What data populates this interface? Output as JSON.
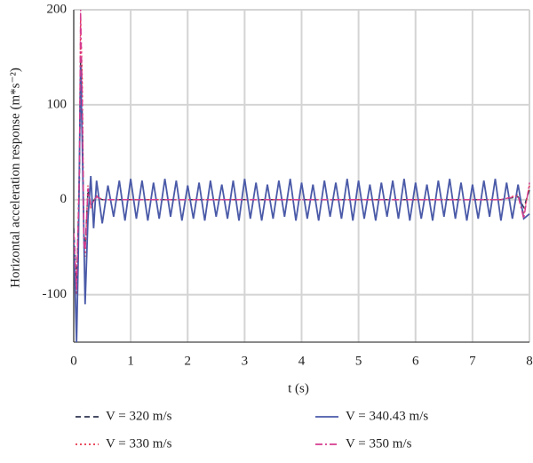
{
  "chart_data": {
    "type": "line",
    "xlabel": "t (s)",
    "ylabel": "Horizontal acceleration response (m*s⁻²)",
    "xlim": [
      0,
      8
    ],
    "ylim": [
      -150,
      200
    ],
    "xticks": [
      0,
      1,
      2,
      3,
      4,
      5,
      6,
      7,
      8
    ],
    "yticks": [
      -100,
      0,
      100,
      200
    ],
    "grid": true,
    "series": [
      {
        "name": "V = 320 m/s",
        "color": "#2f3550",
        "dash": "dashed",
        "x": [
          0,
          0.05,
          0.1,
          0.12,
          0.15,
          0.18,
          0.2,
          0.25,
          0.3,
          0.4,
          0.5,
          1,
          1.5,
          2,
          2.5,
          3,
          3.5,
          4,
          4.5,
          5,
          5.5,
          6,
          6.5,
          7,
          7.5,
          7.8,
          7.9,
          8
        ],
        "values": [
          -30,
          -90,
          20,
          150,
          90,
          -40,
          -50,
          10,
          -5,
          3,
          0,
          0,
          0,
          0,
          0,
          0,
          0,
          0,
          0,
          0,
          0,
          0,
          0,
          0,
          0,
          3,
          -8,
          10
        ]
      },
      {
        "name": "V = 330 m/s",
        "color": "#e8334a",
        "dash": "dotted",
        "x": [
          0,
          0.05,
          0.1,
          0.12,
          0.15,
          0.18,
          0.2,
          0.25,
          0.3,
          0.4,
          0.5,
          1,
          1.5,
          2,
          2.5,
          3,
          3.5,
          4,
          4.5,
          5,
          5.5,
          6,
          6.5,
          7,
          7.5,
          7.8,
          7.9,
          8
        ],
        "values": [
          -40,
          -100,
          40,
          190,
          130,
          -50,
          -60,
          15,
          -8,
          4,
          0,
          0,
          0,
          0,
          0,
          0,
          0,
          0,
          0,
          0,
          0,
          0,
          0,
          0,
          0,
          5,
          -15,
          15
        ]
      },
      {
        "name": "V = 340.43 m/s",
        "color": "#4a5aa8",
        "dash": "solid",
        "x": [
          0,
          0.05,
          0.08,
          0.12,
          0.15,
          0.2,
          0.25,
          0.3,
          0.35,
          0.4,
          0.5,
          0.6,
          0.7,
          0.8,
          0.9,
          1.0,
          1.1,
          1.2,
          1.3,
          1.4,
          1.5,
          1.6,
          1.7,
          1.8,
          1.9,
          2.0,
          2.1,
          2.2,
          2.3,
          2.4,
          2.5,
          2.6,
          2.7,
          2.8,
          2.9,
          3.0,
          3.1,
          3.2,
          3.3,
          3.4,
          3.5,
          3.6,
          3.7,
          3.8,
          3.9,
          4.0,
          4.1,
          4.2,
          4.3,
          4.4,
          4.5,
          4.6,
          4.7,
          4.8,
          4.9,
          5.0,
          5.1,
          5.2,
          5.3,
          5.4,
          5.5,
          5.6,
          5.7,
          5.8,
          5.9,
          6.0,
          6.1,
          6.2,
          6.3,
          6.4,
          6.5,
          6.6,
          6.7,
          6.8,
          6.9,
          7.0,
          7.1,
          7.2,
          7.3,
          7.4,
          7.5,
          7.6,
          7.7,
          7.8,
          7.9,
          8.0
        ],
        "values": [
          -40,
          -150,
          -60,
          140,
          60,
          -110,
          -20,
          25,
          -30,
          20,
          -25,
          15,
          -18,
          20,
          -22,
          22,
          -20,
          20,
          -22,
          18,
          -20,
          22,
          -18,
          20,
          -22,
          15,
          -20,
          18,
          -22,
          20,
          -18,
          16,
          -20,
          20,
          -22,
          22,
          -20,
          18,
          -22,
          16,
          -20,
          20,
          -18,
          22,
          -22,
          18,
          -20,
          16,
          -22,
          20,
          -18,
          18,
          -20,
          22,
          -22,
          20,
          -20,
          16,
          -22,
          18,
          -18,
          20,
          -20,
          22,
          -22,
          18,
          -20,
          16,
          -22,
          20,
          -18,
          22,
          -20,
          18,
          -22,
          16,
          -20,
          20,
          -18,
          22,
          -22,
          18,
          -20,
          16,
          -20,
          -15
        ]
      },
      {
        "name": "V = 350 m/s",
        "color": "#d63c8f",
        "dash": "dashdot",
        "x": [
          0,
          0.05,
          0.1,
          0.12,
          0.15,
          0.18,
          0.2,
          0.25,
          0.3,
          0.4,
          0.5,
          1,
          1.5,
          2,
          2.5,
          3,
          3.5,
          4,
          4.5,
          5,
          5.5,
          6,
          6.5,
          7,
          7.5,
          7.8,
          7.9,
          8
        ],
        "values": [
          -35,
          -95,
          30,
          200,
          110,
          -45,
          -55,
          12,
          -6,
          3,
          0,
          0,
          0,
          0,
          0,
          0,
          0,
          0,
          0,
          0,
          0,
          0,
          0,
          0,
          0,
          4,
          -20,
          18
        ]
      }
    ]
  }
}
